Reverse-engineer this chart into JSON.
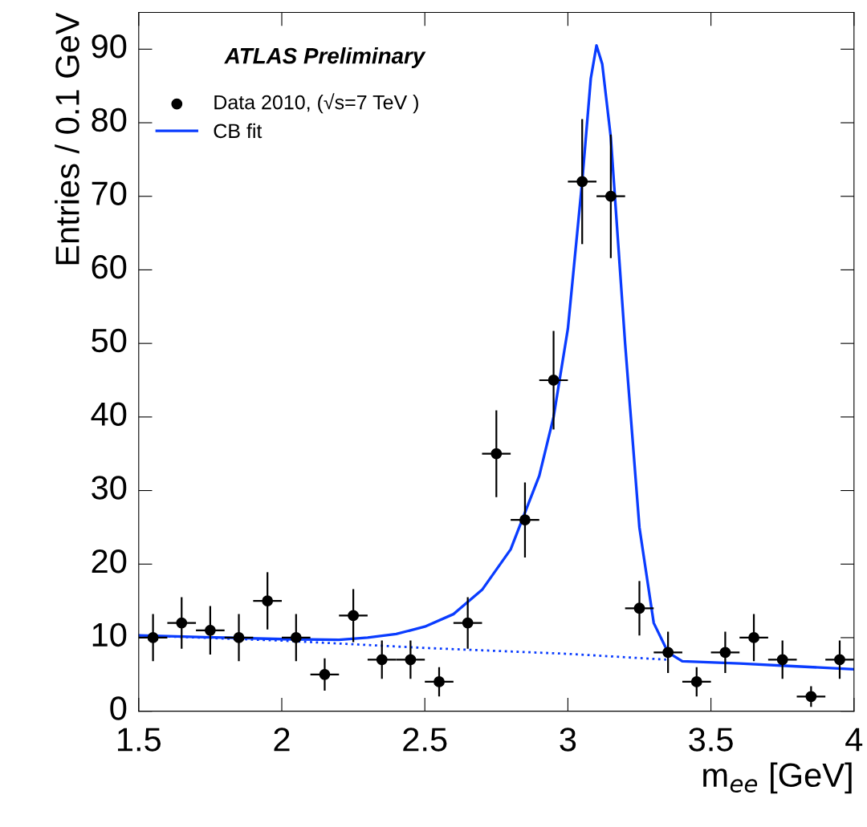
{
  "chart_data": {
    "type": "scatter",
    "xlabel": "m$_{ee}$ [GeV]",
    "ylabel": "Entries / 0.1 GeV",
    "annotations": [
      "ATLAS Preliminary"
    ],
    "x": [
      1.55,
      1.65,
      1.75,
      1.85,
      1.95,
      2.05,
      2.15,
      2.25,
      2.35,
      2.45,
      2.55,
      2.65,
      2.75,
      2.85,
      2.95,
      3.05,
      3.15,
      3.25,
      3.35,
      3.45,
      3.55,
      3.65,
      3.75,
      3.85,
      3.95
    ],
    "series": [
      {
        "name": "Data 2010, (√s=7 TeV )",
        "type": "scatter",
        "color": "#000000",
        "marker": "circle",
        "values": [
          10,
          12,
          11,
          10,
          15,
          10,
          5,
          13,
          7,
          7,
          4,
          12,
          35,
          26,
          45,
          72,
          70,
          14,
          8,
          4,
          8,
          10,
          7,
          2,
          7
        ],
        "errors": [
          3.2,
          3.5,
          3.3,
          3.2,
          3.9,
          3.2,
          2.2,
          3.6,
          2.6,
          2.6,
          2,
          3.5,
          5.9,
          5.1,
          6.7,
          8.5,
          8.4,
          3.7,
          2.8,
          2,
          2.8,
          3.2,
          2.6,
          1.4,
          2.6
        ],
        "xerrors": [
          0.05,
          0.05,
          0.05,
          0.05,
          0.05,
          0.05,
          0.05,
          0.05,
          0.05,
          0.05,
          0.05,
          0.05,
          0.05,
          0.05,
          0.05,
          0.05,
          0.05,
          0.05,
          0.05,
          0.05,
          0.05,
          0.05,
          0.05,
          0.05,
          0.05
        ]
      },
      {
        "name": "CB fit",
        "type": "line",
        "color": "#0a3cff",
        "line_style": "solid",
        "marker": "none",
        "x": [
          1.5,
          1.8,
          2.0,
          2.2,
          2.3,
          2.4,
          2.5,
          2.6,
          2.7,
          2.8,
          2.9,
          2.95,
          3.0,
          3.05,
          3.08,
          3.1,
          3.12,
          3.15,
          3.2,
          3.25,
          3.3,
          3.35,
          3.4,
          3.6,
          3.8,
          4.0
        ],
        "values": [
          10.3,
          10.0,
          9.8,
          9.7,
          10.0,
          10.5,
          11.5,
          13.2,
          16.5,
          22,
          32,
          40,
          52,
          72,
          86,
          90.5,
          88,
          78,
          50,
          25,
          12,
          8,
          6.8,
          6.5,
          6.1,
          5.7
        ]
      },
      {
        "type": "line",
        "color": "#0a3cff",
        "line_style": "dotted",
        "marker": "none",
        "x": [
          1.5,
          2.0,
          2.5,
          3.0,
          3.35
        ],
        "values": [
          10.3,
          9.6,
          8.6,
          7.8,
          7.0
        ]
      }
    ],
    "xlim": [
      1.5,
      4
    ],
    "xticks": [
      1.5,
      2,
      2.5,
      3,
      3.5,
      4
    ],
    "ylim": [
      0,
      95
    ],
    "yticks": [
      0,
      10,
      20,
      30,
      40,
      50,
      60,
      70,
      80,
      90
    ],
    "grid": false,
    "legend": "top left"
  }
}
